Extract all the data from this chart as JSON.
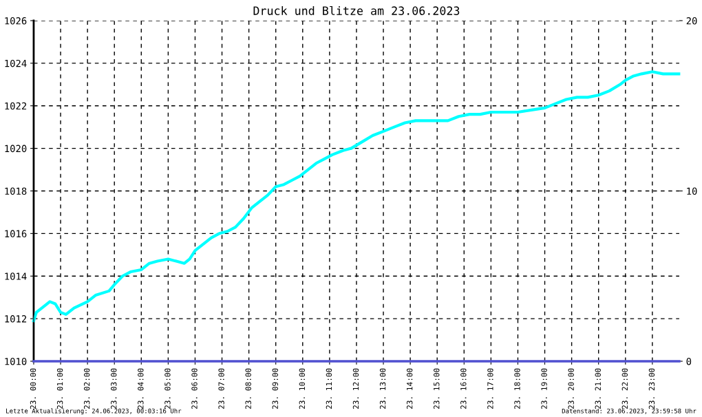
{
  "chart_data": {
    "type": "line",
    "title": "Druck und Blitze am 23.06.2023",
    "series": [
      {
        "color": "#00ffff",
        "x": [
          "2023-06-23T00:00",
          "2023-06-23T00:06",
          "2023-06-23T00:24",
          "2023-06-23T00:36",
          "2023-06-23T00:48",
          "2023-06-23T01:00",
          "2023-06-23T01:12",
          "2023-06-23T01:30",
          "2023-06-23T02:00",
          "2023-06-23T02:18",
          "2023-06-23T02:48",
          "2023-06-23T03:00",
          "2023-06-23T03:18",
          "2023-06-23T03:36",
          "2023-06-23T04:00",
          "2023-06-23T04:18",
          "2023-06-23T04:36",
          "2023-06-23T05:00",
          "2023-06-23T05:18",
          "2023-06-23T05:36",
          "2023-06-23T05:48",
          "2023-06-23T06:00",
          "2023-06-23T06:18",
          "2023-06-23T06:36",
          "2023-06-23T06:54",
          "2023-06-23T07:12",
          "2023-06-23T07:30",
          "2023-06-23T07:48",
          "2023-06-23T08:06",
          "2023-06-23T08:24",
          "2023-06-23T08:42",
          "2023-06-23T09:00",
          "2023-06-23T09:18",
          "2023-06-23T09:36",
          "2023-06-23T09:54",
          "2023-06-23T10:12",
          "2023-06-23T10:30",
          "2023-06-23T10:48",
          "2023-06-23T11:06",
          "2023-06-23T11:30",
          "2023-06-23T11:48",
          "2023-06-23T12:12",
          "2023-06-23T12:36",
          "2023-06-23T13:00",
          "2023-06-23T13:24",
          "2023-06-23T13:48",
          "2023-06-23T14:12",
          "2023-06-23T14:36",
          "2023-06-23T15:00",
          "2023-06-23T15:24",
          "2023-06-23T15:48",
          "2023-06-23T16:12",
          "2023-06-23T16:36",
          "2023-06-23T17:00",
          "2023-06-23T17:30",
          "2023-06-23T18:00",
          "2023-06-23T18:30",
          "2023-06-23T19:00",
          "2023-06-23T19:24",
          "2023-06-23T19:48",
          "2023-06-23T20:12",
          "2023-06-23T20:36",
          "2023-06-23T21:00",
          "2023-06-23T21:24",
          "2023-06-23T21:48",
          "2023-06-23T22:00",
          "2023-06-23T22:18",
          "2023-06-23T22:36",
          "2023-06-23T23:00",
          "2023-06-23T23:24",
          "2023-06-23T23:48",
          "2023-06-23T23:59"
        ],
        "values": [
          1011.9,
          1012.3,
          1012.6,
          1012.8,
          1012.7,
          1012.3,
          1012.2,
          1012.5,
          1012.8,
          1013.1,
          1013.3,
          1013.6,
          1014.0,
          1014.2,
          1014.3,
          1014.6,
          1014.7,
          1014.8,
          1014.7,
          1014.6,
          1014.8,
          1015.2,
          1015.5,
          1015.8,
          1016.0,
          1016.1,
          1016.3,
          1016.7,
          1017.2,
          1017.5,
          1017.8,
          1018.2,
          1018.3,
          1018.5,
          1018.7,
          1019.0,
          1019.3,
          1019.5,
          1019.7,
          1019.9,
          1020.0,
          1020.3,
          1020.6,
          1020.8,
          1021.0,
          1021.2,
          1021.3,
          1021.3,
          1021.3,
          1021.3,
          1021.5,
          1021.6,
          1021.6,
          1021.7,
          1021.7,
          1021.7,
          1021.8,
          1021.9,
          1022.1,
          1022.3,
          1022.4,
          1022.4,
          1022.5,
          1022.7,
          1023.0,
          1023.2,
          1023.4,
          1023.5,
          1023.6,
          1023.5,
          1023.5,
          1023.5
        ]
      },
      {
        "color": "#5050d0",
        "axis": "y2",
        "x": [
          "2023-06-23T00:00",
          "2023-06-24T00:00"
        ],
        "values": [
          0,
          0
        ]
      }
    ],
    "xlim": [
      "2023-06-23T00:00",
      "2023-06-24T00:00"
    ],
    "xticks": [
      {
        "value": "2023-06-23T00:00",
        "label": "23. 00:00"
      },
      {
        "value": "2023-06-23T01:00",
        "label": "23. 01:00"
      },
      {
        "value": "2023-06-23T02:00",
        "label": "23. 02:00"
      },
      {
        "value": "2023-06-23T03:00",
        "label": "23. 03:00"
      },
      {
        "value": "2023-06-23T04:00",
        "label": "23. 04:00"
      },
      {
        "value": "2023-06-23T05:00",
        "label": "23. 05:00"
      },
      {
        "value": "2023-06-23T06:00",
        "label": "23. 06:00"
      },
      {
        "value": "2023-06-23T07:00",
        "label": "23. 07:00"
      },
      {
        "value": "2023-06-23T08:00",
        "label": "23. 08:00"
      },
      {
        "value": "2023-06-23T09:00",
        "label": "23. 09:00"
      },
      {
        "value": "2023-06-23T10:00",
        "label": "23. 10:00"
      },
      {
        "value": "2023-06-23T11:00",
        "label": "23. 11:00"
      },
      {
        "value": "2023-06-23T12:00",
        "label": "23. 12:00"
      },
      {
        "value": "2023-06-23T13:00",
        "label": "23. 13:00"
      },
      {
        "value": "2023-06-23T14:00",
        "label": "23. 14:00"
      },
      {
        "value": "2023-06-23T15:00",
        "label": "23. 15:00"
      },
      {
        "value": "2023-06-23T16:00",
        "label": "23. 16:00"
      },
      {
        "value": "2023-06-23T17:00",
        "label": "23. 17:00"
      },
      {
        "value": "2023-06-23T18:00",
        "label": "23. 18:00"
      },
      {
        "value": "2023-06-23T19:00",
        "label": "23. 19:00"
      },
      {
        "value": "2023-06-23T20:00",
        "label": "23. 20:00"
      },
      {
        "value": "2023-06-23T21:00",
        "label": "23. 21:00"
      },
      {
        "value": "2023-06-23T22:00",
        "label": "23. 22:00"
      },
      {
        "value": "2023-06-23T23:00",
        "label": "23. 23:00"
      }
    ],
    "ylim": [
      1010,
      1026
    ],
    "yticks": [
      1010,
      1012,
      1014,
      1016,
      1018,
      1020,
      1022,
      1024,
      1026
    ],
    "y2lim": [
      0,
      20
    ],
    "y2ticks": [
      0,
      10,
      20
    ],
    "grid": true,
    "line_style": "solid",
    "annotations": [
      "Letzte Aktualisierung: 24.06.2023, 00:03:16 Uhr",
      "Datenstand: 23.06.2023, 23:59:58 Uhr"
    ]
  }
}
